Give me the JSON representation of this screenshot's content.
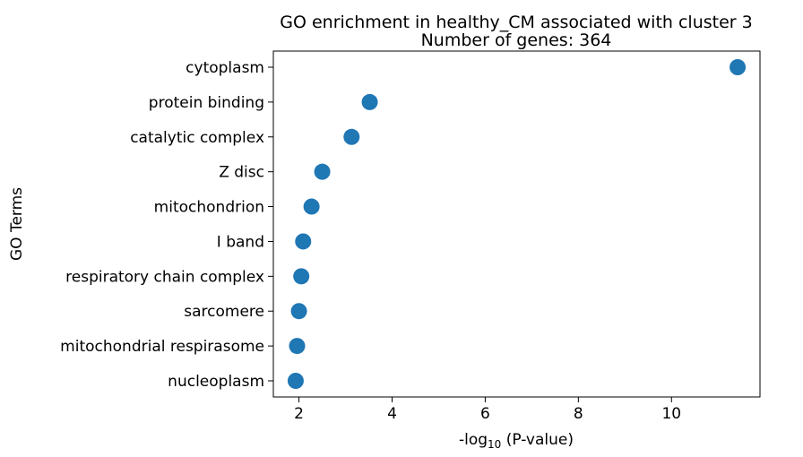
{
  "chart_data": {
    "type": "scatter",
    "title": "GO enrichment in healthy_CM associated with cluster 3",
    "subtitle": "Number of genes: 364",
    "xlabel_main": "-log",
    "xlabel_sub": "10",
    "xlabel_rest": " (P-value)",
    "ylabel": "GO Terms",
    "xlim": [
      1.45,
      11.9
    ],
    "xticks": [
      2,
      4,
      6,
      8,
      10
    ],
    "xtick_labels": [
      "2",
      "4",
      "6",
      "8",
      "10"
    ],
    "grid": false,
    "marker_color": "#1f77b4",
    "points": [
      {
        "term": "cytoplasm",
        "x": 11.42
      },
      {
        "term": "protein binding",
        "x": 3.52
      },
      {
        "term": "catalytic complex",
        "x": 3.13
      },
      {
        "term": "Z disc",
        "x": 2.5
      },
      {
        "term": "mitochondrion",
        "x": 2.27
      },
      {
        "term": "I band",
        "x": 2.09
      },
      {
        "term": "respiratory chain complex",
        "x": 2.05
      },
      {
        "term": "sarcomere",
        "x": 2.0
      },
      {
        "term": "mitochondrial respirasome",
        "x": 1.96
      },
      {
        "term": "nucleoplasm",
        "x": 1.93
      }
    ]
  }
}
